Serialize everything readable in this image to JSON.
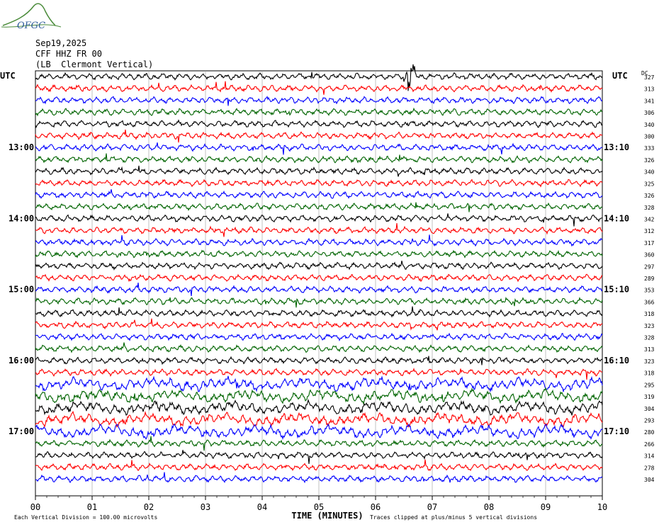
{
  "logo": {
    "text": "OFGC",
    "color": "#2f7d3b"
  },
  "header": {
    "date": "Sep19,2025",
    "station": "CFF HHZ FR 00",
    "location": "(LB  Clermont Vertical)"
  },
  "chart_data": {
    "type": "helicorder",
    "left_axis_label": "UTC",
    "right_axis_label": "UTC",
    "dc_label": "DC",
    "time_labels_left": [
      "13:00",
      "14:00",
      "15:00",
      "16:00",
      "17:00"
    ],
    "time_labels_right": [
      "13:10",
      "14:10",
      "15:10",
      "16:10",
      "17:10"
    ],
    "trace_colors": [
      "#000000",
      "#ff0000",
      "#0000ff",
      "#006400"
    ],
    "dc_values": [
      327,
      313,
      341,
      306,
      340,
      300,
      333,
      326,
      340,
      325,
      326,
      328,
      342,
      312,
      317,
      360,
      297,
      289,
      353,
      366,
      318,
      323,
      328,
      313,
      323,
      318,
      295,
      319,
      304,
      293,
      280,
      266,
      314,
      278,
      304
    ],
    "x_ticks": [
      "00",
      "01",
      "02",
      "03",
      "04",
      "05",
      "06",
      "07",
      "08",
      "09",
      "10"
    ],
    "xlabel": "TIME (MINUTES)",
    "xlim": [
      0,
      10
    ],
    "footer_left": "Each Vertical Division =  100.00 microvolts",
    "footer_right": "Traces clipped at plus/minus 5 vertical divisions",
    "event_minute": 6.6
  }
}
